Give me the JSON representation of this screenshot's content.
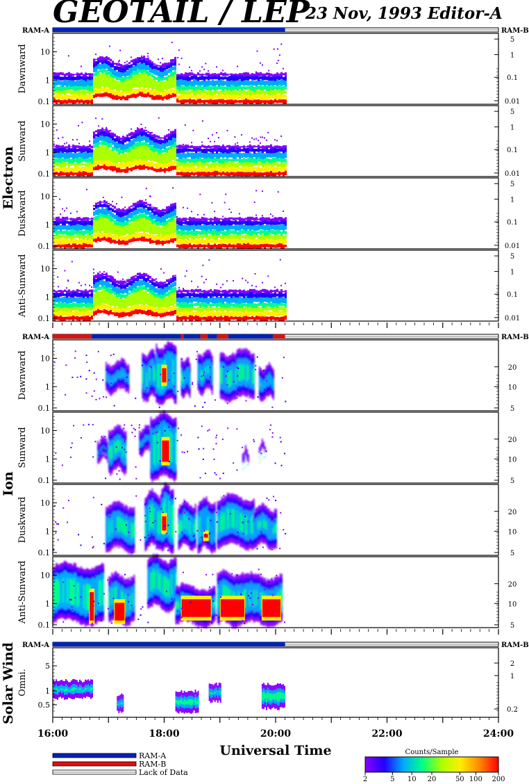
{
  "title": "GEOTAIL / LEP",
  "subtitle": "23 Nov, 1993   Editor-A",
  "colors": {
    "ram_a": "#0022bb",
    "ram_b": "#dd1111",
    "lack_of_data": "#ffffff",
    "axis": "#000000"
  },
  "chart_data": {
    "type": "heatmap",
    "xlabel": "Universal Time",
    "x_ticks": [
      "16:00",
      "18:00",
      "20:00",
      "22:00",
      "24:00"
    ],
    "x_range_hours": [
      16,
      24
    ],
    "data_end_hour": 20.17,
    "ram_label_left": "RAM-A",
    "ram_label_right": "RAM-B",
    "groups": [
      {
        "name": "Electron",
        "left_ticks": [
          "0.1",
          "1",
          "10"
        ],
        "ram_segments": [
          {
            "start": 16.0,
            "end": 20.17,
            "ram": "RAM-A"
          }
        ],
        "panels": [
          {
            "label": "Dawnward",
            "right_ticks": [
              "5",
              "1",
              "0.1",
              "0.01"
            ]
          },
          {
            "label": "Sunward",
            "right_ticks": [
              "5",
              "1",
              "0.1",
              "0.01"
            ]
          },
          {
            "label": "Duskward",
            "right_ticks": [
              "5",
              "1",
              "0.1",
              "0.01"
            ]
          },
          {
            "label": "Anti-Sunward",
            "right_ticks": [
              "5",
              "1",
              "0.1",
              "0.01"
            ]
          }
        ]
      },
      {
        "name": "Ion",
        "left_ticks": [
          "0.1",
          "1",
          "10"
        ],
        "ram_segments": [
          {
            "start": 16.0,
            "end": 16.7,
            "ram": "RAM-B"
          },
          {
            "start": 16.7,
            "end": 18.3,
            "ram": "RAM-A"
          },
          {
            "start": 18.3,
            "end": 18.35,
            "ram": "RAM-B"
          },
          {
            "start": 18.35,
            "end": 18.65,
            "ram": "RAM-A"
          },
          {
            "start": 18.65,
            "end": 18.78,
            "ram": "RAM-B"
          },
          {
            "start": 18.78,
            "end": 18.95,
            "ram": "RAM-A"
          },
          {
            "start": 18.95,
            "end": 19.15,
            "ram": "RAM-B"
          },
          {
            "start": 19.15,
            "end": 19.95,
            "ram": "RAM-A"
          },
          {
            "start": 19.95,
            "end": 20.17,
            "ram": "RAM-B"
          }
        ],
        "panels": [
          {
            "label": "Dawnward",
            "right_ticks": [
              "20",
              "10",
              "5"
            ]
          },
          {
            "label": "Sunward",
            "right_ticks": [
              "20",
              "10",
              "5"
            ]
          },
          {
            "label": "Duskward",
            "right_ticks": [
              "20",
              "10",
              "5"
            ]
          },
          {
            "label": "Anti-Sunward",
            "right_ticks": [
              "20",
              "10",
              "5"
            ]
          }
        ]
      },
      {
        "name": "Solar Wind",
        "left_ticks": [
          "0.5",
          "1",
          "5"
        ],
        "ram_segments": [
          {
            "start": 16.0,
            "end": 20.17,
            "ram": "RAM-A"
          }
        ],
        "panels": [
          {
            "label": "Omni.",
            "right_ticks": [
              "2",
              "1",
              "0.2"
            ]
          }
        ]
      }
    ],
    "legend": {
      "placement": "bottom-left",
      "entries": [
        "RAM-A",
        "RAM-B",
        "Lack of Data"
      ]
    },
    "colorbar": {
      "title": "Counts/Sample",
      "ticks": [
        "2",
        "5",
        "10",
        "20",
        "50",
        "100",
        "200"
      ],
      "colors": [
        "#8800ff",
        "#2200ff",
        "#00aaff",
        "#00ff88",
        "#aaff00",
        "#ffee00",
        "#ff8800",
        "#ff0000"
      ]
    }
  }
}
